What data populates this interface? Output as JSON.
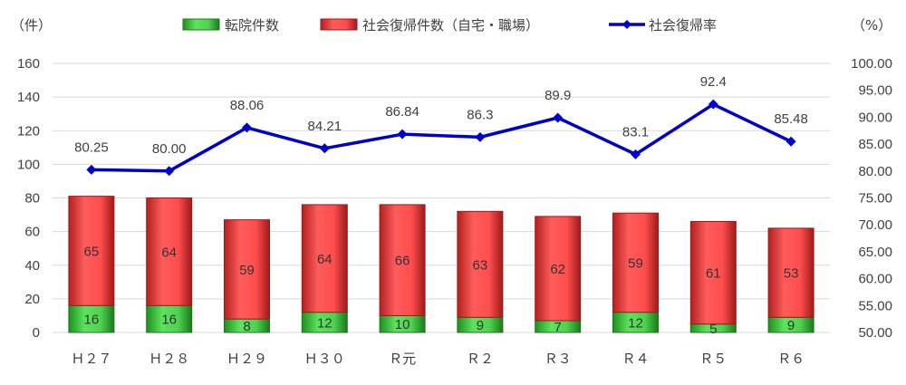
{
  "chart_data": {
    "type": "bar",
    "stacked": true,
    "categories": [
      "Ｈ２７",
      "Ｈ２８",
      "Ｈ２９",
      "Ｈ３０",
      "Ｒ元",
      "Ｒ２",
      "Ｒ３",
      "Ｒ４",
      "Ｒ５",
      "Ｒ６"
    ],
    "series": [
      {
        "name": "転院件数",
        "type": "bar",
        "axis": "left",
        "color": "#33cc33",
        "values": [
          16,
          16,
          8,
          12,
          10,
          9,
          7,
          12,
          5,
          9
        ]
      },
      {
        "name": "社会復帰件数（自宅・職場）",
        "type": "bar",
        "axis": "left",
        "color": "#ff4d4d",
        "values": [
          65,
          64,
          59,
          64,
          66,
          63,
          62,
          59,
          61,
          53
        ]
      },
      {
        "name": "社会復帰率",
        "type": "line",
        "axis": "right",
        "color": "#0000cc",
        "values": [
          80.25,
          80.0,
          88.06,
          84.21,
          86.84,
          86.3,
          89.9,
          83.1,
          92.4,
          85.48
        ],
        "labels": [
          "80.25",
          "80.00",
          "88.06",
          "84.21",
          "86.84",
          "86.3",
          "89.9",
          "83.1",
          "92.4",
          "85.48"
        ]
      }
    ],
    "left_axis": {
      "unit": "（件）",
      "ylim": [
        0,
        160
      ],
      "ticks": [
        "0",
        "20",
        "40",
        "60",
        "80",
        "100",
        "120",
        "140",
        "160"
      ]
    },
    "right_axis": {
      "unit": "（%）",
      "ylim": [
        50,
        100
      ],
      "ticks": [
        "50.00",
        "55.00",
        "60.00",
        "65.00",
        "70.00",
        "75.00",
        "80.00",
        "85.00",
        "90.00",
        "95.00",
        "100.00"
      ]
    },
    "grid": true,
    "legend_position": "top"
  }
}
